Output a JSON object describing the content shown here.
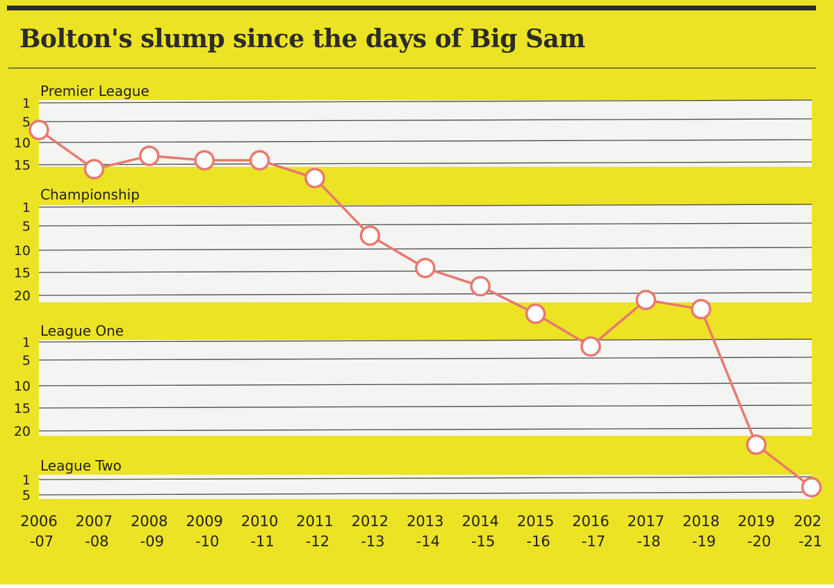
{
  "chart_data": {
    "type": "line",
    "title": "Bolton's slump since the days of Big Sam",
    "categories": [
      [
        "2006",
        "-07"
      ],
      [
        "2007",
        "-08"
      ],
      [
        "2008",
        "-09"
      ],
      [
        "2009",
        "-10"
      ],
      [
        "2010",
        "-11"
      ],
      [
        "2011",
        "-12"
      ],
      [
        "2012",
        "-13"
      ],
      [
        "2013",
        "-14"
      ],
      [
        "2014",
        "-15"
      ],
      [
        "2015",
        "-16"
      ],
      [
        "2016",
        "-17"
      ],
      [
        "2017",
        "-18"
      ],
      [
        "2018",
        "-19"
      ],
      [
        "2019",
        "-20"
      ],
      [
        "202",
        "-21"
      ]
    ],
    "bands": [
      {
        "name": "Premier League",
        "ticks": [
          "1",
          "5",
          "10",
          "15"
        ]
      },
      {
        "name": "Championship",
        "ticks": [
          "1",
          "5",
          "10",
          "15",
          "20"
        ]
      },
      {
        "name": "League One",
        "ticks": [
          "1",
          "5",
          "10",
          "15",
          "20"
        ]
      },
      {
        "name": "League Two",
        "ticks": [
          "1",
          "5"
        ]
      }
    ],
    "series": [
      {
        "points": [
          {
            "league": "Premier League",
            "position": 7
          },
          {
            "league": "Premier League",
            "position": 16
          },
          {
            "league": "Premier League",
            "position": 13
          },
          {
            "league": "Premier League",
            "position": 14
          },
          {
            "league": "Premier League",
            "position": 14
          },
          {
            "league": "Premier League",
            "position": 18
          },
          {
            "league": "Championship",
            "position": 7
          },
          {
            "league": "Championship",
            "position": 14
          },
          {
            "league": "Championship",
            "position": 18
          },
          {
            "league": "Championship",
            "position": 24
          },
          {
            "league": "League One",
            "position": 2
          },
          {
            "league": "Championship",
            "position": 21
          },
          {
            "league": "Championship",
            "position": 23
          },
          {
            "league": "League One",
            "position": 23
          },
          {
            "league": "League Two",
            "position": 3
          }
        ]
      }
    ],
    "colors": {
      "background": "#ece324",
      "band": "#f4f4f2",
      "gridline": "#4a4a4a",
      "line": "#e8796f",
      "marker_fill": "#ffffff",
      "text": "#222222"
    }
  }
}
